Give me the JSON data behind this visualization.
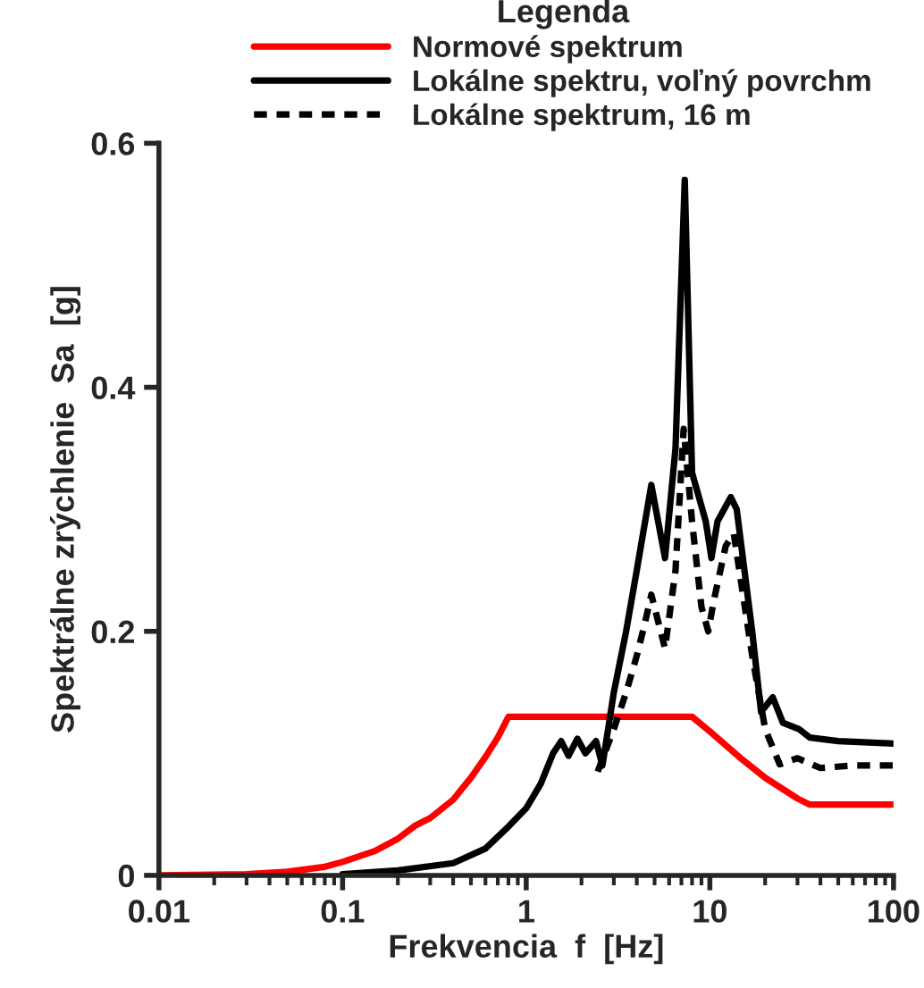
{
  "chart_data": {
    "type": "line",
    "xlabel": "Frekvencia  f  [Hz]",
    "ylabel": "Spektrálne zrýchlenie  Sa  [g]",
    "legend_title": "Legenda",
    "log": "x",
    "xlim": [
      0.01,
      100
    ],
    "xticks": [
      0.01,
      0.1,
      1,
      10,
      100
    ],
    "ylim": [
      0,
      0.6
    ],
    "yticks": [
      0,
      0.2,
      0.4,
      0.6
    ],
    "grid": false,
    "legend": "top",
    "marker": "none",
    "series": [
      {
        "name": "Normové spektrum",
        "color": "#ff0000",
        "line_style": "solid",
        "x": [
          0.01,
          0.03,
          0.05,
          0.08,
          0.1,
          0.15,
          0.2,
          0.25,
          0.3,
          0.4,
          0.5,
          0.6,
          0.7,
          0.8,
          8,
          10,
          15,
          20,
          30,
          35,
          100
        ],
        "values": [
          0,
          0.001,
          0.003,
          0.007,
          0.011,
          0.02,
          0.03,
          0.041,
          0.047,
          0.062,
          0.08,
          0.097,
          0.113,
          0.13,
          0.13,
          0.118,
          0.095,
          0.08,
          0.063,
          0.058,
          0.058
        ]
      },
      {
        "name": "Lokálne spektru, voľný povrchm",
        "color": "#000000",
        "line_style": "solid",
        "x": [
          0.1,
          0.2,
          0.4,
          0.6,
          0.8,
          1.0,
          1.2,
          1.4,
          1.55,
          1.7,
          1.9,
          2.1,
          2.4,
          2.6,
          3,
          3.5,
          4,
          4.8,
          5.7,
          6.5,
          7.3,
          8,
          9.5,
          10.2,
          11,
          13,
          14,
          17,
          19,
          22,
          25,
          30.5,
          35,
          50,
          100
        ],
        "values": [
          0.001,
          0.004,
          0.01,
          0.022,
          0.04,
          0.055,
          0.075,
          0.1,
          0.11,
          0.098,
          0.112,
          0.1,
          0.11,
          0.09,
          0.15,
          0.2,
          0.25,
          0.32,
          0.26,
          0.35,
          0.57,
          0.33,
          0.29,
          0.26,
          0.29,
          0.31,
          0.3,
          0.2,
          0.134,
          0.146,
          0.125,
          0.12,
          0.113,
          0.11,
          0.108
        ]
      },
      {
        "name": "Lokálne spektrum, 16 m",
        "color": "#000000",
        "line_style": "dashed",
        "x": [
          2.45,
          3,
          3.5,
          4,
          4.4,
          4.8,
          5.7,
          6.5,
          7.2,
          8,
          9,
          9.8,
          10.5,
          12.2,
          13.5,
          17,
          20,
          24,
          30,
          40,
          60,
          100
        ],
        "values": [
          0.085,
          0.12,
          0.15,
          0.18,
          0.205,
          0.23,
          0.186,
          0.25,
          0.366,
          0.29,
          0.22,
          0.2,
          0.225,
          0.27,
          0.28,
          0.18,
          0.12,
          0.091,
          0.096,
          0.088,
          0.09,
          0.09
        ]
      }
    ]
  }
}
